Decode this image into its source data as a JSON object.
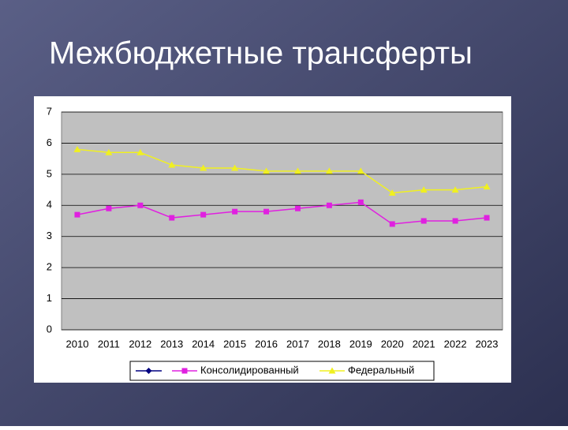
{
  "chart_data": {
    "type": "line",
    "title": "Межбюджетные трансферты",
    "categories": [
      "2010",
      "2011",
      "2012",
      "2013",
      "2014",
      "2015",
      "2016",
      "2017",
      "2018",
      "2019",
      "2020",
      "2021",
      "2022",
      "2023"
    ],
    "series": [
      {
        "name": "Консолидированный",
        "color": "#e020e0",
        "marker": "square",
        "values": [
          3.7,
          3.9,
          4.0,
          3.6,
          3.7,
          3.8,
          3.8,
          3.9,
          4.0,
          4.1,
          3.4,
          3.5,
          3.5,
          3.6
        ]
      },
      {
        "name": "Федеральный",
        "color": "#f0f020",
        "marker": "triangle",
        "values": [
          5.8,
          5.7,
          5.7,
          5.3,
          5.2,
          5.2,
          5.1,
          5.1,
          5.1,
          5.1,
          4.4,
          4.5,
          4.5,
          4.6
        ]
      }
    ],
    "ylim": [
      0,
      7
    ],
    "yticks": [
      0,
      1,
      2,
      3,
      4,
      5,
      6,
      7
    ],
    "grid": true,
    "legend": "bottom"
  }
}
